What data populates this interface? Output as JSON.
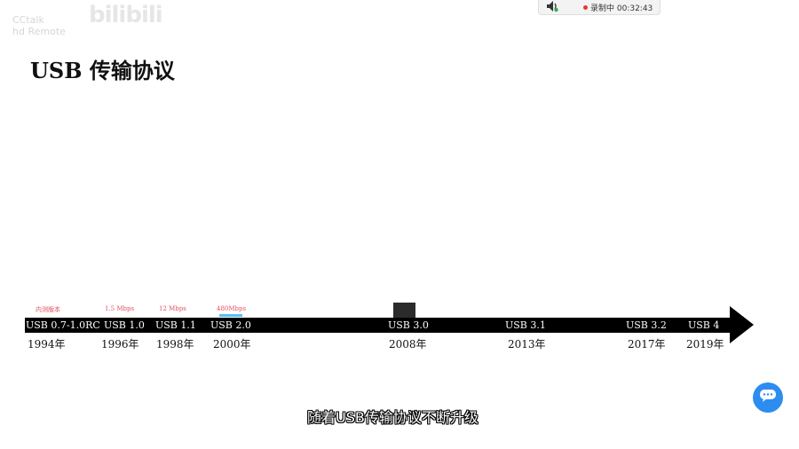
{
  "watermark": {
    "line1": "CCtalk",
    "line2": "hd Remote"
  },
  "logo": "bilibili",
  "recorder": {
    "status": "录制中 00:32:43",
    "icons": [
      "speaker-icon",
      "record-dot-icon"
    ]
  },
  "slide": {
    "title": "USB 传输协议"
  },
  "timeline": {
    "colors": {
      "bar": "#000000",
      "speed": "#e05263",
      "accent": "#4fc3f7"
    },
    "milestones": [
      {
        "label": "USB 0.7-1.0RC",
        "year": "1994年",
        "speed": "内测版本"
      },
      {
        "label": "USB 1.0",
        "year": "1996年",
        "speed": "1.5 Mbps"
      },
      {
        "label": "USB 1.1",
        "year": "1998年",
        "speed": "12 Mbps"
      },
      {
        "label": "USB 2.0",
        "year": "2000年",
        "speed": "480Mbps"
      },
      {
        "label": "USB 3.0",
        "year": "2008年",
        "speed": ""
      },
      {
        "label": "USB 3.1",
        "year": "2013年",
        "speed": ""
      },
      {
        "label": "USB 3.2",
        "year": "2017年",
        "speed": ""
      },
      {
        "label": "USB 4",
        "year": "2019年",
        "speed": ""
      }
    ]
  },
  "subtitle": "随着USB传输协议不断升级",
  "float_button": {
    "icon": "chat-bubble-icon",
    "color": "#2d8cf0"
  }
}
